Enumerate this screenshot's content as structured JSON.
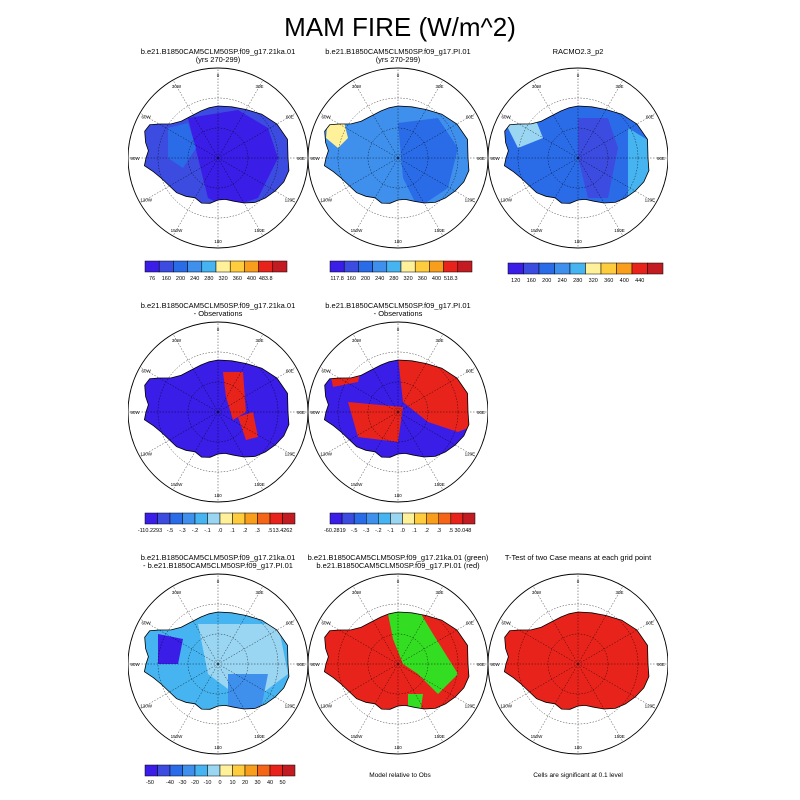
{
  "page_title": "MAM FIRE (W/m^2)",
  "longitude_labels": [
    "0",
    "30E",
    "60E",
    "90E",
    "120E",
    "150E",
    "180",
    "150W",
    "120W",
    "90W",
    "60W",
    "30W"
  ],
  "palettes": {
    "rb12": [
      "#3a1de6",
      "#3c4ce0",
      "#2a6ce8",
      "#3f90ec",
      "#46b4f0",
      "#9ad6f2",
      "#fff09a",
      "#fecc3c",
      "#f99e1c",
      "#f46518",
      "#e8231b",
      "#c21c22"
    ]
  },
  "panels": [
    {
      "id": "p11",
      "title": [
        "b.e21.B1850CAM5CLM50SP.f09_g17.21ka.01",
        "(yrs 270-299)"
      ],
      "fill": "mean1",
      "colorbar": {
        "labels": [
          "76",
          "160",
          "200",
          "240",
          "280",
          "320",
          "360",
          "400",
          "483.8"
        ]
      }
    },
    {
      "id": "p12",
      "title": [
        "b.e21.B1850CAM5CLM50SP.f09_g17.PI.01",
        "(yrs 270-299)"
      ],
      "fill": "mean2",
      "colorbar": {
        "labels": [
          "117.8",
          "160",
          "200",
          "240",
          "280",
          "320",
          "360",
          "400",
          "518.3"
        ]
      }
    },
    {
      "id": "p13",
      "title": [
        "RACMO2.3_p2"
      ],
      "fill": "obs",
      "colorbar": {
        "labels": [
          "120",
          "160",
          "200",
          "240",
          "280",
          "320",
          "360",
          "400",
          "440"
        ]
      }
    },
    {
      "id": "p21",
      "title": [
        "b.e21.B1850CAM5CLM50SP.f09_g17.21ka.01",
        "- Observations"
      ],
      "fill": "diff1",
      "colorbar": {
        "labels": [
          "-110.2293",
          "-.5",
          "-.3",
          "-.2",
          "-.1",
          ".0",
          ".1",
          ".2",
          ".3",
          ".5",
          "13.4262"
        ]
      }
    },
    {
      "id": "p22",
      "title": [
        "b.e21.B1850CAM5CLM50SP.f09_g17.PI.01",
        "- Observations"
      ],
      "fill": "diff2",
      "colorbar": {
        "labels": [
          "-60.2819",
          "-.5",
          "-.3",
          "-.2",
          "-.1",
          ".0",
          ".1",
          ".2",
          ".3",
          ".5",
          "30.048"
        ]
      }
    },
    {
      "id": "p31",
      "title": [
        "b.e21.B1850CAM5CLM50SP.f09_g17.21ka.01",
        "- b.e21.B1850CAM5CLM50SP.f09_g17.PI.01"
      ],
      "fill": "diff3",
      "colorbar": {
        "labels": [
          "-50",
          "-40",
          "-30",
          "-20",
          "-10",
          "0",
          "10",
          "20",
          "30",
          "40",
          "50"
        ]
      }
    },
    {
      "id": "p32",
      "title": [
        "b.e21.B1850CAM5CLM50SP.f09_g17.21ka.01 (green)",
        "b.e21.B1850CAM5CLM50SP.f09_g17.PI.01 (red)"
      ],
      "fill": "rel",
      "caption": "Model relative to Obs"
    },
    {
      "id": "p33",
      "title": [
        "T-Test of two Case means at each grid point"
      ],
      "fill": "ttest",
      "caption": "Cells are significant at 0.1 level"
    }
  ]
}
